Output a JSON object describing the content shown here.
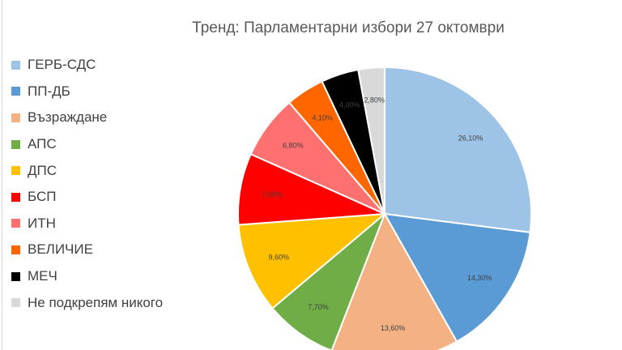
{
  "chart_data": {
    "type": "pie",
    "title": "Тренд: Парламентарни избори 27 октомври",
    "legend_position": "left",
    "slices": [
      {
        "label": "ГЕРБ-СДС",
        "value": 26.1,
        "display": "26,10%",
        "color": "#9dc3e6"
      },
      {
        "label": "ПП-ДБ",
        "value": 14.3,
        "display": "14,30%",
        "color": "#5b9bd5"
      },
      {
        "label": "Възраждане",
        "value": 13.6,
        "display": "13,60%",
        "color": "#f4b183"
      },
      {
        "label": "АПС",
        "value": 7.7,
        "display": "7,70%",
        "color": "#70ad47"
      },
      {
        "label": "ДПС",
        "value": 9.6,
        "display": "9,60%",
        "color": "#ffc000"
      },
      {
        "label": "БСП",
        "value": 7.6,
        "display": "7,60%",
        "color": "#ff0000"
      },
      {
        "label": "ИТН",
        "value": 6.8,
        "display": "6,80%",
        "color": "#ff7070"
      },
      {
        "label": "ВЕЛИЧИЕ",
        "value": 4.1,
        "display": "4,10%",
        "color": "#ff6600"
      },
      {
        "label": "МЕЧ",
        "value": 4.0,
        "display": "4,00%",
        "color": "#000000"
      },
      {
        "label": "Не подкрепям никого",
        "value": 2.8,
        "display": "2,80%",
        "color": "#d9d9d9"
      }
    ]
  }
}
